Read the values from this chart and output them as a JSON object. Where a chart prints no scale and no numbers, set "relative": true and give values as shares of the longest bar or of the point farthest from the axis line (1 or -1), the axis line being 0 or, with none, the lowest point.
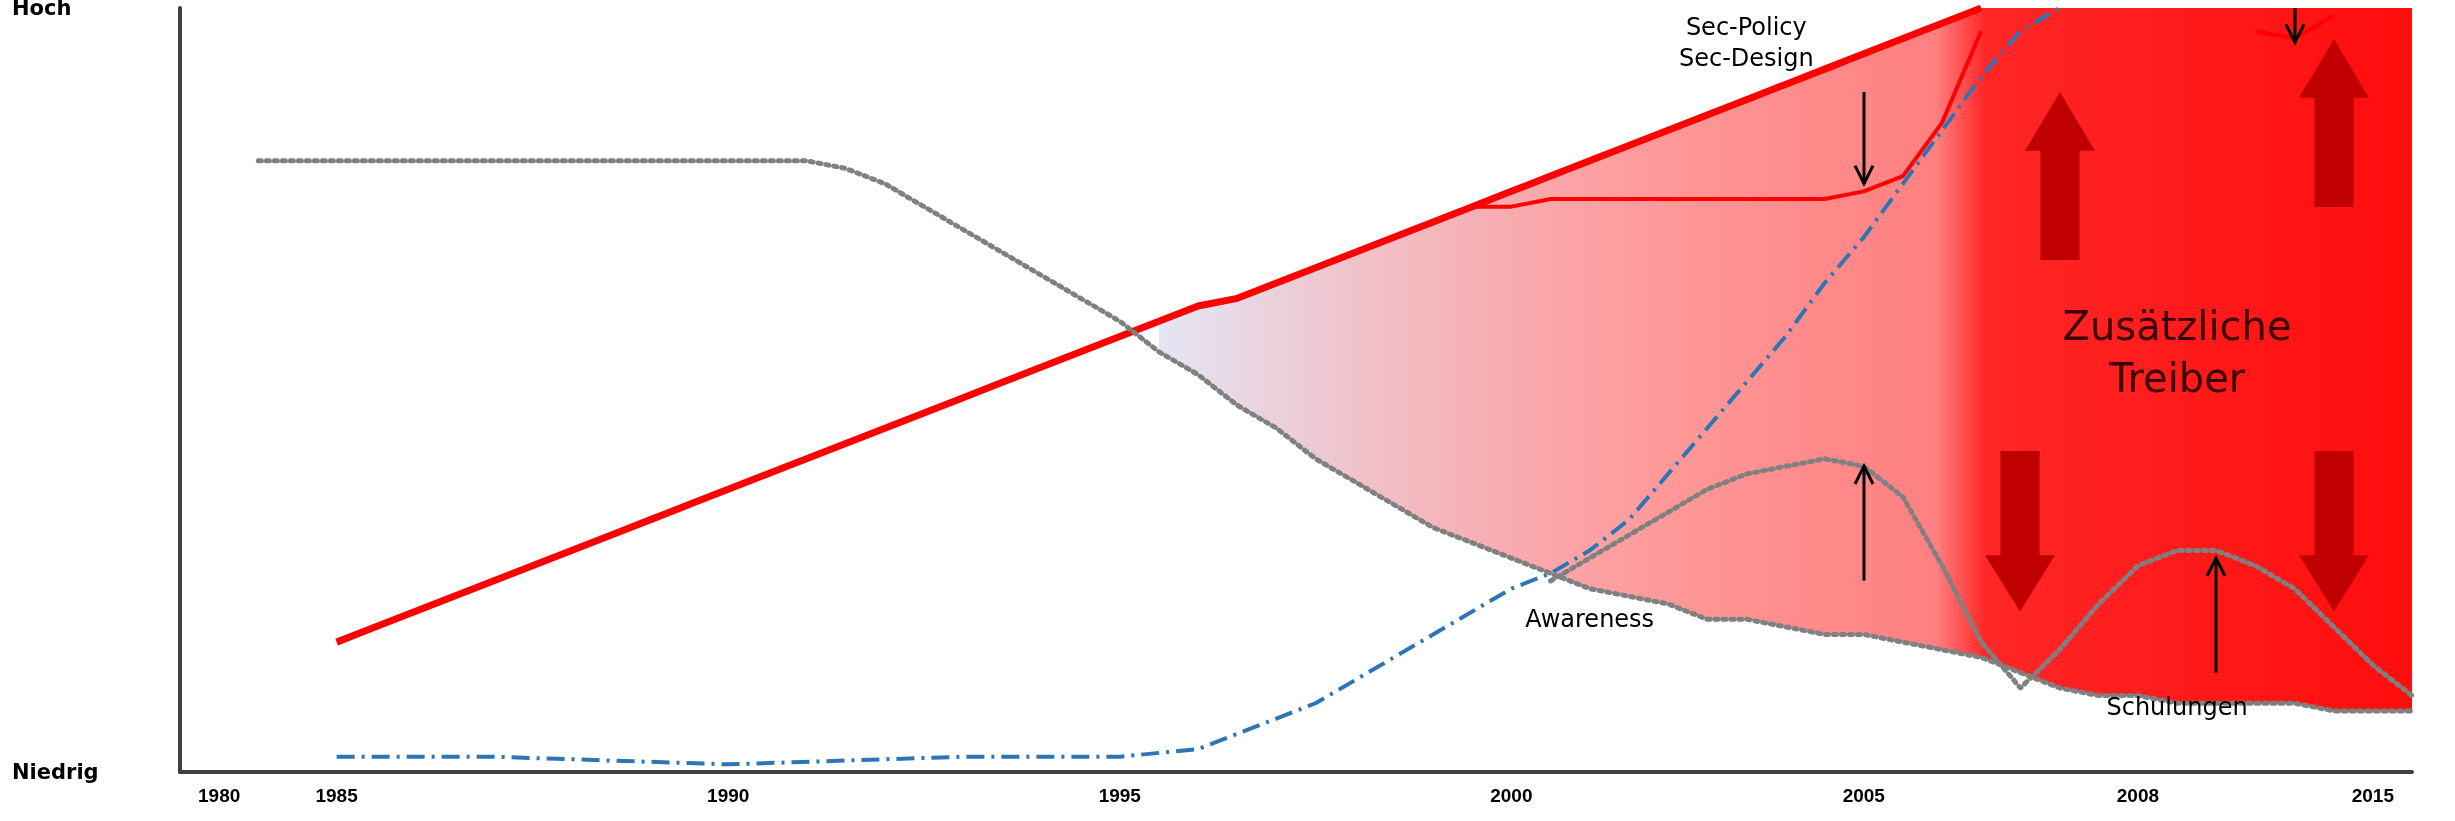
{
  "chart_data": {
    "type": "line",
    "relative": true,
    "grid": false,
    "marker": "none",
    "categories": [
      null,
      "1980",
      null,
      null,
      "1985",
      null,
      null,
      null,
      null,
      null,
      null,
      null,
      null,
      null,
      "1990",
      null,
      null,
      null,
      null,
      null,
      null,
      null,
      null,
      null,
      "1995",
      null,
      null,
      null,
      null,
      null,
      null,
      null,
      null,
      null,
      "2000",
      null,
      null,
      null,
      null,
      null,
      null,
      null,
      null,
      "2005",
      null,
      null,
      null,
      null,
      null,
      null,
      "2008",
      null,
      null,
      null,
      null,
      null,
      "2015",
      null
    ],
    "series": [
      {
        "color": "#ff0000",
        "line_style": "solid",
        "values": [
          null,
          null,
          null,
          null,
          0.17,
          0.19,
          0.21,
          0.23,
          0.25,
          0.27,
          0.29,
          0.31,
          0.33,
          0.35,
          0.37,
          0.39,
          0.41,
          0.43,
          0.45,
          0.47,
          0.49,
          0.51,
          0.53,
          0.55,
          0.57,
          0.59,
          0.61,
          0.62,
          0.64,
          0.66,
          0.68,
          0.7,
          0.72,
          0.74,
          0.76,
          0.78,
          0.8,
          0.82,
          0.84,
          0.86,
          0.88,
          0.9,
          0.92,
          0.94,
          0.96,
          0.98,
          1.0,
          null,
          null,
          null,
          null,
          null,
          null,
          null,
          null,
          null,
          null,
          null
        ],
        "lower": [
          null,
          null,
          null,
          null,
          null,
          null,
          null,
          null,
          null,
          null,
          null,
          null,
          null,
          null,
          null,
          null,
          null,
          null,
          null,
          null,
          null,
          null,
          null,
          null,
          null,
          0.55,
          0.52,
          0.48,
          0.45,
          0.41,
          0.38,
          0.35,
          0.32,
          0.3,
          0.28,
          0.26,
          0.24,
          0.23,
          0.22,
          0.2,
          0.2,
          0.19,
          0.18,
          0.18,
          0.17,
          0.16,
          0.15,
          0.13,
          0.11,
          0.1,
          0.1,
          0.09,
          0.09,
          0.09,
          0.09,
          0.08,
          0.08,
          0.08
        ],
        "upper": [
          null,
          null,
          null,
          null,
          null,
          null,
          null,
          null,
          null,
          null,
          null,
          null,
          null,
          null,
          null,
          null,
          null,
          null,
          null,
          null,
          null,
          null,
          null,
          null,
          null,
          0.59,
          0.61,
          0.62,
          0.64,
          0.66,
          0.68,
          0.7,
          0.72,
          0.74,
          0.76,
          0.78,
          0.8,
          0.82,
          0.84,
          0.86,
          0.88,
          0.9,
          0.92,
          0.94,
          0.96,
          0.98,
          1.0,
          1.0,
          1.0,
          1.0,
          1.0,
          1.0,
          1.0,
          1.0,
          1.0,
          1.0,
          1.0,
          1.0
        ]
      },
      {
        "color": "#ff0000",
        "line_style": "solid",
        "values": [
          null,
          null,
          null,
          null,
          null,
          null,
          null,
          null,
          null,
          null,
          null,
          null,
          null,
          null,
          null,
          null,
          null,
          null,
          null,
          null,
          null,
          null,
          null,
          null,
          null,
          null,
          null,
          null,
          null,
          null,
          null,
          null,
          null,
          0.74,
          0.74,
          0.75,
          0.75,
          0.75,
          0.75,
          0.75,
          0.75,
          0.75,
          0.75,
          0.76,
          0.78,
          0.85,
          0.97,
          null,
          null,
          null,
          null,
          null,
          null,
          0.97,
          0.96,
          0.99,
          null,
          null
        ]
      },
      {
        "color": "#2e75b6",
        "line_style": "dashdot",
        "values": [
          null,
          null,
          null,
          null,
          0.02,
          null,
          null,
          null,
          0.02,
          null,
          null,
          null,
          null,
          null,
          0.01,
          null,
          null,
          null,
          null,
          null,
          0.02,
          null,
          null,
          null,
          0.02,
          null,
          0.03,
          0.05,
          0.07,
          0.09,
          0.12,
          0.15,
          0.18,
          0.21,
          0.24,
          0.26,
          0.29,
          0.33,
          0.39,
          0.45,
          0.51,
          0.57,
          0.64,
          0.7,
          0.77,
          0.84,
          0.91,
          0.97,
          1.0,
          null,
          null,
          null,
          null,
          null,
          null,
          null,
          null,
          null
        ]
      },
      {
        "color": "#808080",
        "line_style": "dotted",
        "values": [
          null,
          null,
          0.8,
          0.8,
          0.8,
          0.8,
          0.8,
          0.8,
          0.8,
          0.8,
          0.8,
          0.8,
          0.8,
          0.8,
          0.8,
          0.8,
          0.8,
          0.79,
          0.77,
          0.74,
          0.71,
          0.68,
          0.65,
          0.62,
          0.59,
          0.55,
          0.52,
          0.48,
          0.45,
          0.41,
          0.38,
          0.35,
          0.32,
          0.3,
          0.28,
          0.26,
          0.24,
          0.23,
          0.22,
          0.2,
          0.2,
          0.19,
          0.18,
          0.18,
          0.17,
          0.16,
          0.15,
          0.13,
          0.11,
          0.1,
          0.1,
          0.09,
          0.09,
          0.09,
          0.09,
          0.08,
          0.08,
          0.08
        ]
      },
      {
        "color": "#808080",
        "line_style": "dotted",
        "values": [
          null,
          null,
          null,
          null,
          null,
          null,
          null,
          null,
          null,
          null,
          null,
          null,
          null,
          null,
          null,
          null,
          null,
          null,
          null,
          null,
          null,
          null,
          null,
          null,
          null,
          null,
          null,
          null,
          null,
          null,
          null,
          null,
          null,
          null,
          null,
          0.25,
          0.28,
          0.31,
          0.34,
          0.37,
          0.39,
          0.4,
          0.41,
          0.4,
          0.36,
          0.27,
          0.17,
          0.11,
          0.16,
          0.22,
          0.27,
          0.29,
          0.29,
          0.27,
          0.24,
          0.19,
          0.14,
          0.1
        ]
      }
    ],
    "annotations": [
      "Hoch",
      "Niedrig",
      "Sec-Policy\nSec-Design",
      "Awareness",
      "Schulungen",
      "Zusätzliche\nTreiber"
    ]
  }
}
